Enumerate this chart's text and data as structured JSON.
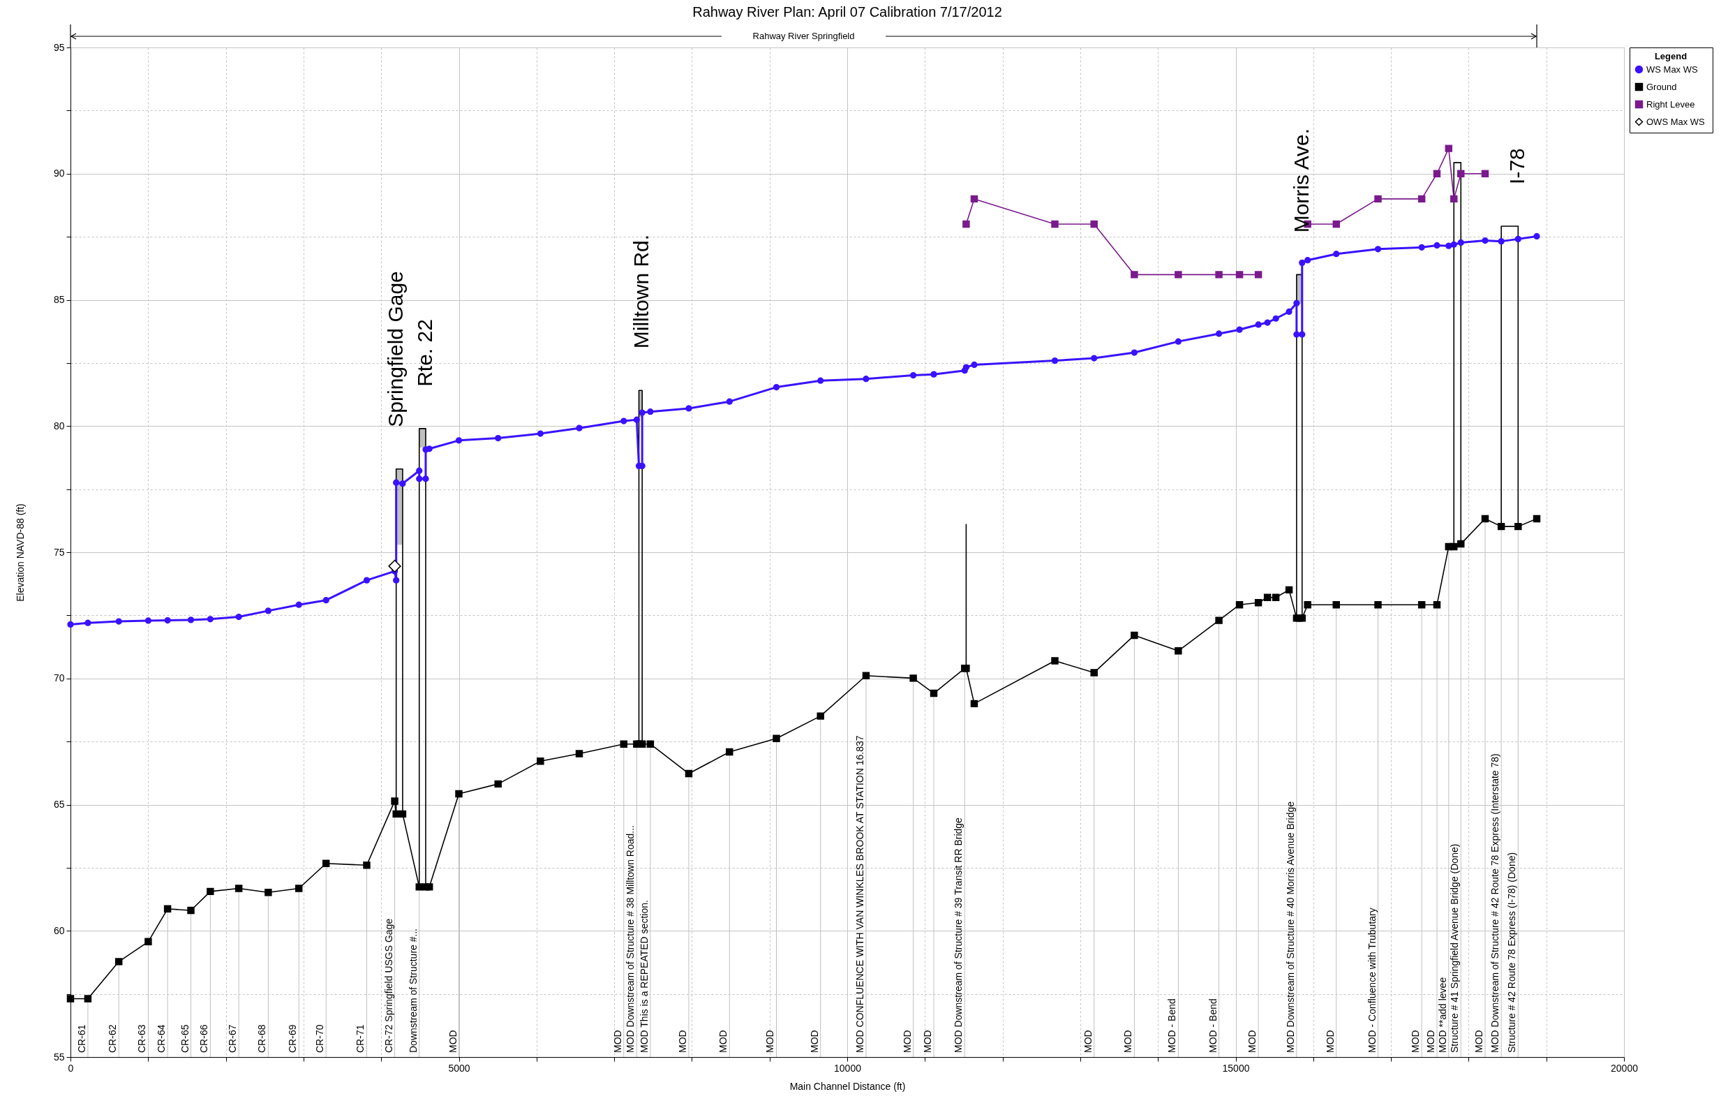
{
  "chart_data": {
    "type": "line",
    "title": "Rahway River    Plan: April 07 Calibration    7/17/2012",
    "xlabel": "Main Channel Distance (ft)",
    "ylabel": "Elevation NAVD-88 (ft)",
    "legend_title": "Legend",
    "xlim": [
      0,
      20000
    ],
    "ylim": [
      55,
      95
    ],
    "xticks": [
      0,
      {
        "value": 1000,
        "label": null
      },
      {
        "value": 2000,
        "label": null
      },
      {
        "value": 3000,
        "label": null
      },
      {
        "value": 4000,
        "label": null
      },
      5000,
      {
        "value": 6000,
        "label": null
      },
      {
        "value": 7000,
        "label": null
      },
      {
        "value": 8000,
        "label": null
      },
      {
        "value": 9000,
        "label": null
      },
      10000,
      {
        "value": 11000,
        "label": null
      },
      {
        "value": 12000,
        "label": null
      },
      {
        "value": 13000,
        "label": null
      },
      {
        "value": 14000,
        "label": null
      },
      15000,
      {
        "value": 16000,
        "label": null
      },
      {
        "value": 17000,
        "label": null
      },
      {
        "value": 18000,
        "label": null
      },
      {
        "value": 19000,
        "label": null
      },
      20000
    ],
    "yticks": [
      55,
      {
        "value": 57.5,
        "label": null
      },
      60,
      {
        "value": 62.5,
        "label": null
      },
      65,
      {
        "value": 67.5,
        "label": null
      },
      70,
      {
        "value": 72.5,
        "label": null
      },
      75,
      {
        "value": 77.5,
        "label": null
      },
      80,
      {
        "value": 82.5,
        "label": null
      },
      85,
      {
        "value": 87.5,
        "label": null
      },
      90,
      {
        "value": 92.5,
        "label": null
      },
      95
    ],
    "grid": true,
    "legend": "top right",
    "series": [
      {
        "color": "#000000",
        "x": [
          4193,
          4193,
          4276,
          4276
        ],
        "values": [
          64.63,
          78.3,
          78.3,
          64.63
        ],
        "lower": [
          null,
          75.3,
          75.3,
          null
        ],
        "upper": [
          null,
          78.3,
          78.3,
          null
        ]
      },
      {
        "color": "#000000",
        "x": [
          4490,
          4490,
          4573,
          4573
        ],
        "values": [
          61.74,
          79.9,
          79.9,
          61.74
        ],
        "lower": [
          null,
          79.15,
          79.15,
          null
        ],
        "upper": [
          null,
          79.9,
          79.9,
          null
        ]
      },
      {
        "color": "#000000",
        "x": [
          7318,
          7318,
          7360,
          7360
        ],
        "values": [
          67.4,
          81.41,
          81.41,
          67.4
        ],
        "lower": [
          null,
          80.35,
          80.35,
          null
        ],
        "upper": [
          null,
          81.41,
          81.41,
          null
        ]
      },
      {
        "color": "#000000",
        "x": [
          11531,
          11531
        ],
        "values": [
          70.4,
          76.1
        ]
      },
      {
        "color": "#000000",
        "x": [
          15785,
          15785,
          15856,
          15856
        ],
        "values": [
          72.39,
          86.0,
          86.0,
          72.39
        ],
        "lower": [
          null,
          84.85,
          84.85,
          null
        ],
        "upper": [
          null,
          86.0,
          86.0,
          null
        ]
      },
      {
        "color": "#000000",
        "x": [
          17810,
          17810,
          17900,
          17900
        ],
        "values": [
          75.22,
          90.44,
          90.44,
          75.33
        ]
      },
      {
        "color": "#000000",
        "x": [
          18420,
          18420,
          18637,
          18637
        ],
        "values": [
          76.02,
          87.92,
          87.92,
          76.02
        ]
      },
      {
        "name": "WS  Max WS",
        "color": "#3a12ff",
        "marker": "circle",
        "x": [
          0,
          224,
          622,
          1001,
          1250,
          1550,
          1800,
          2167,
          2546,
          2940,
          3290,
          3814,
          4174,
          4193,
          4193,
          4276,
          4490,
          4490,
          4573,
          4573,
          4620,
          5000,
          5505,
          6050,
          6550,
          7123,
          7290,
          7318,
          7360,
          7360,
          7465,
          7960,
          8484,
          9088,
          9656,
          10242,
          10850,
          11114,
          11512,
          11531,
          11635,
          12673,
          13178,
          13696,
          14262,
          14785,
          15050,
          15293,
          15410,
          15518,
          15688,
          15785,
          15785,
          15856,
          15856,
          15927,
          16296,
          16833,
          17396,
          17592,
          17743,
          17810,
          17900,
          18212,
          18420,
          18637,
          18877
        ],
        "values": [
          72.14,
          72.2,
          72.26,
          72.29,
          72.3,
          72.32,
          72.35,
          72.44,
          72.68,
          72.92,
          73.1,
          73.89,
          74.25,
          73.89,
          77.76,
          77.72,
          78.23,
          77.91,
          77.91,
          79.07,
          79.1,
          79.43,
          79.52,
          79.7,
          79.92,
          80.2,
          80.25,
          78.42,
          78.42,
          80.53,
          80.57,
          80.7,
          80.97,
          81.54,
          81.8,
          81.87,
          82.01,
          82.05,
          82.2,
          82.33,
          82.43,
          82.59,
          82.69,
          82.91,
          83.35,
          83.66,
          83.82,
          84.02,
          84.1,
          84.26,
          84.53,
          84.87,
          83.63,
          83.63,
          86.47,
          86.57,
          86.82,
          87.01,
          87.08,
          87.16,
          87.14,
          87.19,
          87.27,
          87.35,
          87.32,
          87.41,
          87.52
        ]
      },
      {
        "name": "Ground",
        "color": "#000000",
        "marker": "square",
        "x": [
          0,
          224,
          622,
          1001,
          1250,
          1550,
          1800,
          2167,
          2546,
          2940,
          3290,
          3814,
          4174,
          4193,
          4276,
          4490,
          4573,
          4620,
          5000,
          5505,
          6050,
          6550,
          7123,
          7290,
          7318,
          7360,
          7465,
          7960,
          8484,
          9088,
          9656,
          10242,
          10850,
          11114,
          11512,
          11531,
          11635,
          12673,
          13178,
          13696,
          14262,
          14785,
          15050,
          15293,
          15410,
          15518,
          15688,
          15785,
          15820,
          15856,
          15927,
          16296,
          16833,
          17396,
          17592,
          17743,
          17810,
          17900,
          18212,
          18420,
          18637,
          18877
        ],
        "values": [
          57.31,
          57.31,
          58.78,
          59.57,
          60.87,
          60.81,
          61.56,
          61.68,
          61.52,
          61.68,
          62.67,
          62.6,
          65.14,
          64.63,
          64.63,
          61.74,
          61.74,
          61.74,
          65.43,
          65.82,
          66.72,
          67.02,
          67.4,
          67.4,
          67.4,
          67.4,
          67.4,
          66.23,
          67.09,
          67.62,
          68.51,
          70.11,
          70.01,
          69.41,
          70.4,
          70.4,
          69.0,
          70.7,
          70.23,
          71.71,
          71.09,
          72.3,
          72.92,
          73.0,
          73.21,
          73.21,
          73.51,
          72.39,
          72.39,
          72.39,
          72.92,
          72.92,
          72.92,
          72.92,
          72.92,
          75.22,
          75.22,
          75.33,
          76.33,
          76.02,
          76.02,
          76.33
        ]
      },
      {
        "name": "Right Levee",
        "color": "#7a1a8c",
        "marker": "square",
        "x": [
          11531,
          11635,
          12673,
          13178,
          13696,
          14262,
          14785,
          15050,
          15293,
          15600,
          15927,
          16296,
          16833,
          17396,
          17592,
          17743,
          17810,
          17900,
          18212
        ],
        "values": [
          88.0,
          89.0,
          88.0,
          88.0,
          86.0,
          86.0,
          86.0,
          86.0,
          86.0,
          null,
          88.0,
          88.0,
          89.0,
          89.0,
          90.0,
          91.0,
          89.0,
          90.0,
          90.0
        ]
      },
      {
        "name": "OWS  Max WS",
        "type": "scatter",
        "color": "#000000",
        "marker": "diamond",
        "x": [
          4174
        ],
        "values": [
          74.45
        ]
      }
    ],
    "ref_lines": [
      {
        "axis": "x",
        "value": 224,
        "label": "CR-61",
        "color": "#c0c0c0"
      },
      {
        "axis": "x",
        "value": 622,
        "label": "CR-62",
        "color": "#c0c0c0"
      },
      {
        "axis": "x",
        "value": 1001,
        "label": "CR-63",
        "color": "#c0c0c0"
      },
      {
        "axis": "x",
        "value": 1250,
        "label": "CR-64",
        "color": "#c0c0c0"
      },
      {
        "axis": "x",
        "value": 1550,
        "label": "CR-65",
        "color": "#c0c0c0"
      },
      {
        "axis": "x",
        "value": 1800,
        "label": "CR-66",
        "color": "#c0c0c0"
      },
      {
        "axis": "x",
        "value": 2167,
        "label": "CR-67",
        "color": "#c0c0c0"
      },
      {
        "axis": "x",
        "value": 2546,
        "label": "CR-68",
        "color": "#c0c0c0"
      },
      {
        "axis": "x",
        "value": 2940,
        "label": "CR-69",
        "color": "#c0c0c0"
      },
      {
        "axis": "x",
        "value": 3290,
        "label": "CR-70",
        "color": "#c0c0c0"
      },
      {
        "axis": "x",
        "value": 3814,
        "label": "CR-71",
        "color": "#c0c0c0"
      },
      {
        "axis": "x",
        "value": 4174,
        "label": "CR-72 Springfield USGS Gage",
        "color": "#c0c0c0"
      },
      {
        "axis": "x",
        "value": 4490,
        "label": "Downstream of Structure #...",
        "color": "#c0c0c0"
      },
      {
        "axis": "x",
        "value": 5000,
        "label": "MOD",
        "color": "#c0c0c0"
      },
      {
        "axis": "x",
        "value": 7123,
        "label": "MOD",
        "color": "#c0c0c0"
      },
      {
        "axis": "x",
        "value": 7290,
        "label": "MOD Downstream of Structure # 38 Milltown Road...",
        "color": "#c0c0c0"
      },
      {
        "axis": "x",
        "value": 7465,
        "label": "MOD This is a REPEATED section.",
        "color": "#c0c0c0"
      },
      {
        "axis": "x",
        "value": 7960,
        "label": "MOD",
        "color": "#c0c0c0"
      },
      {
        "axis": "x",
        "value": 8484,
        "label": "MOD",
        "color": "#c0c0c0"
      },
      {
        "axis": "x",
        "value": 9088,
        "label": "MOD",
        "color": "#c0c0c0"
      },
      {
        "axis": "x",
        "value": 9656,
        "label": "MOD",
        "color": "#c0c0c0"
      },
      {
        "axis": "x",
        "value": 10242,
        "label": "MOD CONFLUENCE WITH VAN WINKLES BROOK AT STATION 16.837",
        "color": "#c0c0c0"
      },
      {
        "axis": "x",
        "value": 10850,
        "label": "MOD",
        "color": "#c0c0c0"
      },
      {
        "axis": "x",
        "value": 11114,
        "label": "MOD",
        "color": "#c0c0c0"
      },
      {
        "axis": "x",
        "value": 11512,
        "label": "MOD Downstream of Structure # 39 Transit RR Bridge",
        "color": "#c0c0c0"
      },
      {
        "axis": "x",
        "value": 13178,
        "label": "MOD",
        "color": "#c0c0c0"
      },
      {
        "axis": "x",
        "value": 13696,
        "label": "MOD",
        "color": "#c0c0c0"
      },
      {
        "axis": "x",
        "value": 14262,
        "label": "MOD - Bend",
        "color": "#c0c0c0"
      },
      {
        "axis": "x",
        "value": 14785,
        "label": "MOD - Bend",
        "color": "#c0c0c0"
      },
      {
        "axis": "x",
        "value": 15293,
        "label": "MOD",
        "color": "#c0c0c0"
      },
      {
        "axis": "x",
        "value": 15785,
        "label": "MOD Downstream of Structure # 40 Morris Avenue Bridge",
        "color": "#c0c0c0"
      },
      {
        "axis": "x",
        "value": 16296,
        "label": "MOD",
        "color": "#c0c0c0"
      },
      {
        "axis": "x",
        "value": 16833,
        "label": "MOD - Confluence with Trubutary",
        "color": "#c0c0c0"
      },
      {
        "axis": "x",
        "value": 17396,
        "label": "MOD",
        "color": "#c0c0c0"
      },
      {
        "axis": "x",
        "value": 17592,
        "label": "MOD",
        "color": "#c0c0c0"
      },
      {
        "axis": "x",
        "value": 17743,
        "label": "MOD  **add levee",
        "color": "#c0c0c0"
      },
      {
        "axis": "x",
        "value": 17900,
        "label": "Structure # 41 Springfield  Avenue Bridge (Done)",
        "color": "#c0c0c0"
      },
      {
        "axis": "x",
        "value": 18212,
        "label": "MOD",
        "color": "#c0c0c0"
      },
      {
        "axis": "x",
        "value": 18420,
        "label": "MOD Downstream of Structure # 42 Route 78 Express (Interstate 78)",
        "color": "#c0c0c0"
      },
      {
        "axis": "x",
        "value": 18637,
        "label": "Structure # 42 Route 78 Express (I-78) (Done)",
        "color": "#c0c0c0"
      }
    ],
    "annotations": [
      "Rahway River Springfield",
      {
        "text": "Springfield Gage",
        "x": 4193,
        "y": 78.3
      },
      {
        "text": "Rte. 22",
        "x": 4573,
        "y": 79.9
      },
      {
        "text": "Milltown Rd.",
        "x": 7360,
        "y": 81.41
      },
      {
        "text": "Morris Ave.",
        "x": 15856,
        "y": 86.0
      },
      {
        "text": "I-78",
        "x": 18637,
        "y": 87.92
      }
    ]
  }
}
